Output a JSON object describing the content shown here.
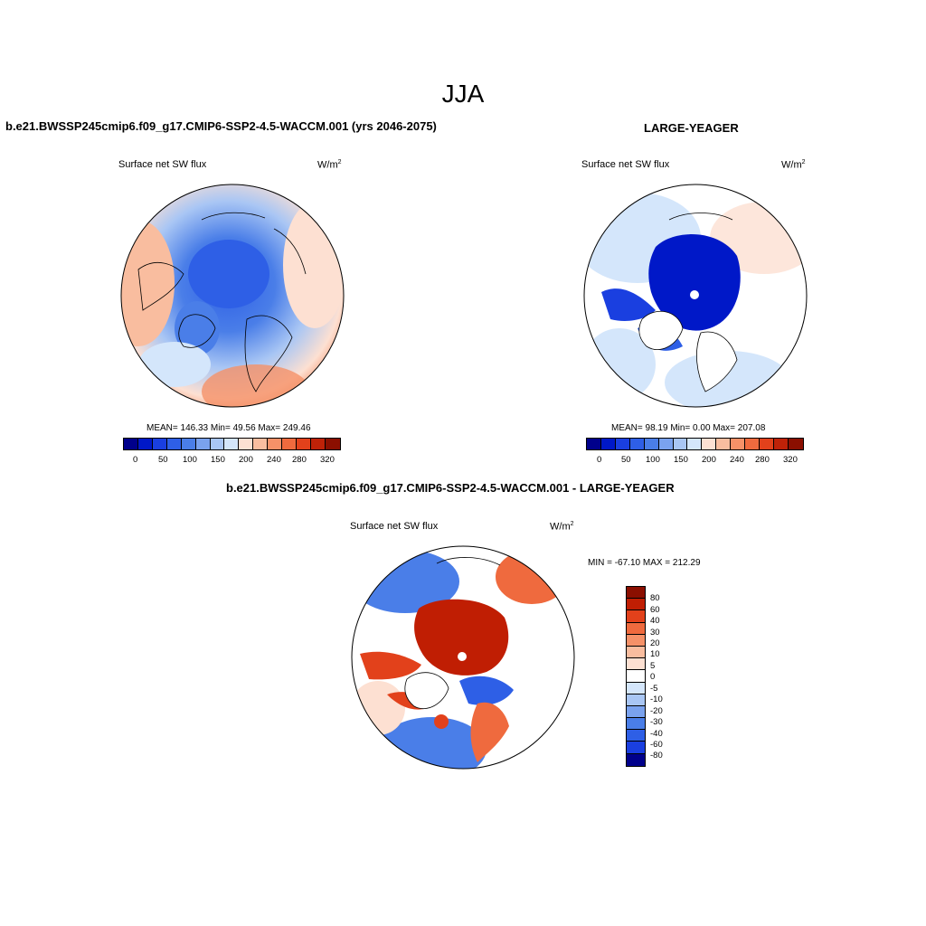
{
  "main_title": "JJA",
  "chart_data": [
    {
      "type": "heatmap",
      "projection": "north-polar-stereographic",
      "title": "b.e21.BWSSP245cmip6.f09_g17.CMIP6-SSP2-4.5-WACCM.001 (yrs 2046-2075)",
      "variable": "Surface net SW flux",
      "units_base": "W/m",
      "units_exp": "2",
      "stats_text": "MEAN= 146.33  Min=  49.56  Max= 249.46",
      "mean": 146.33,
      "min": 49.56,
      "max": 249.46,
      "colorbar": {
        "levels": [
          0,
          25,
          50,
          75,
          100,
          125,
          150,
          175,
          200,
          220,
          240,
          260,
          280,
          300,
          320
        ],
        "tick_labels": [
          "0",
          "50",
          "100",
          "150",
          "200",
          "240",
          "280",
          "320"
        ]
      }
    },
    {
      "type": "heatmap",
      "projection": "north-polar-stereographic",
      "title": "LARGE-YEAGER",
      "variable": "Surface net SW flux",
      "units_base": "W/m",
      "units_exp": "2",
      "stats_text": "MEAN=  98.19  Min=   0.00  Max= 207.08",
      "mean": 98.19,
      "min": 0.0,
      "max": 207.08,
      "colorbar": {
        "levels": [
          0,
          25,
          50,
          75,
          100,
          125,
          150,
          175,
          200,
          220,
          240,
          260,
          280,
          300,
          320
        ],
        "tick_labels": [
          "0",
          "50",
          "100",
          "150",
          "200",
          "240",
          "280",
          "320"
        ]
      }
    },
    {
      "type": "heatmap",
      "projection": "north-polar-stereographic",
      "title": "b.e21.BWSSP245cmip6.f09_g17.CMIP6-SSP2-4.5-WACCM.001 - LARGE-YEAGER",
      "variable": "Surface net SW flux",
      "units_base": "W/m",
      "units_exp": "2",
      "stats_text": "MIN = -67.10 MAX = 212.29",
      "min": -67.1,
      "max": 212.29,
      "colorbar": {
        "levels": [
          80,
          60,
          40,
          30,
          20,
          10,
          5,
          0,
          -5,
          -10,
          -20,
          -30,
          -40,
          -60,
          -80
        ],
        "tick_labels": [
          "80",
          "60",
          "40",
          "30",
          "20",
          "10",
          "5",
          "0",
          "-5",
          "-10",
          "-20",
          "-30",
          "-40",
          "-60",
          "-80"
        ]
      }
    }
  ],
  "colors": {
    "abs_scale": [
      "#00008b",
      "#0018c8",
      "#1a3fe0",
      "#2e5fe6",
      "#4a7ee8",
      "#7aa2ee",
      "#a9c6f4",
      "#d4e6fb",
      "#fde0d2",
      "#f9bd9f",
      "#f59168",
      "#ef6a3e",
      "#e2411b",
      "#bf2208",
      "#8b0f00"
    ],
    "diff_scale": [
      "#8b0f00",
      "#c01e03",
      "#e2411b",
      "#ef6a3e",
      "#f59168",
      "#f9bd9f",
      "#fde0d2",
      "#ffffff",
      "#d4e6fb",
      "#a9c6f4",
      "#7aa2ee",
      "#4a7ee8",
      "#2e5fe6",
      "#1a3fe0",
      "#00008b"
    ]
  }
}
